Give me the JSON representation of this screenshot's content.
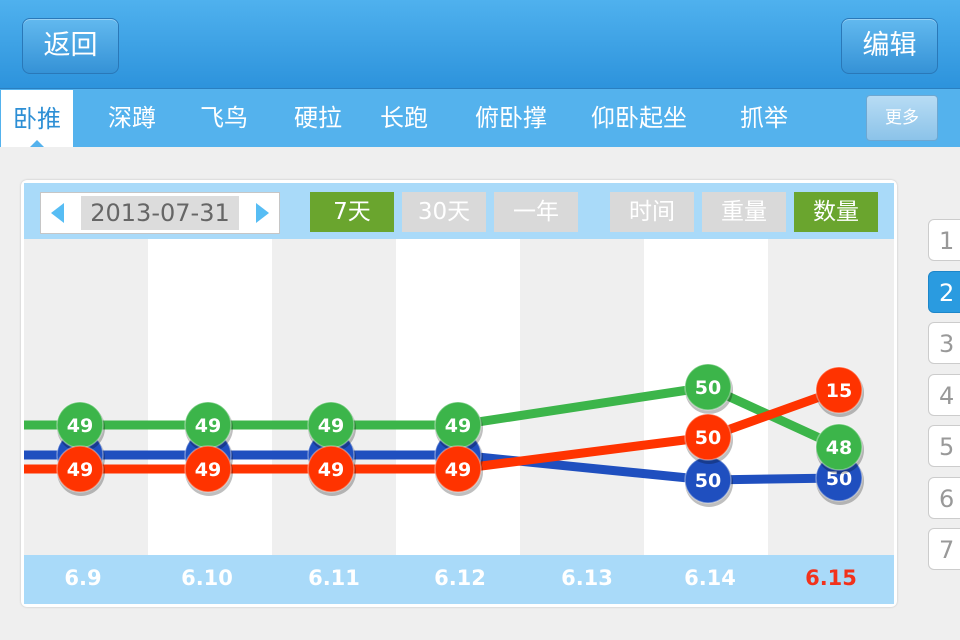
{
  "header": {
    "back_label": "返回",
    "edit_label": "编辑"
  },
  "tabs": [
    {
      "label": "卧推",
      "active": true
    },
    {
      "label": "深蹲"
    },
    {
      "label": "飞鸟"
    },
    {
      "label": "硬拉"
    },
    {
      "label": "长跑"
    },
    {
      "label": "俯卧撑"
    },
    {
      "label": "仰卧起坐"
    },
    {
      "label": "抓举"
    }
  ],
  "more_label": "更多",
  "toolbar": {
    "date": "2013-07-31",
    "range_buttons": [
      "7天",
      "30天",
      "一年"
    ],
    "range_selected": "7天",
    "metric_buttons": [
      "时间",
      "重量",
      "数量"
    ],
    "metric_selected": "数量"
  },
  "chart_data": {
    "type": "line",
    "categories": [
      "6.9",
      "6.10",
      "6.11",
      "6.12",
      "6.13",
      "6.14",
      "6.15"
    ],
    "highlight_category": "6.15",
    "series": [
      {
        "color": "#3cb54a",
        "values": [
          49,
          49,
          49,
          49,
          null,
          50,
          48
        ]
      },
      {
        "color": "#1f4fbf",
        "values": [
          49,
          49,
          49,
          49,
          null,
          50,
          50
        ]
      },
      {
        "color": "#ff3300",
        "values": [
          49,
          49,
          49,
          49,
          null,
          50,
          15
        ]
      }
    ]
  },
  "pager": {
    "pages": [
      "1",
      "2",
      "3",
      "4",
      "5",
      "6",
      "7"
    ],
    "current": "2"
  }
}
